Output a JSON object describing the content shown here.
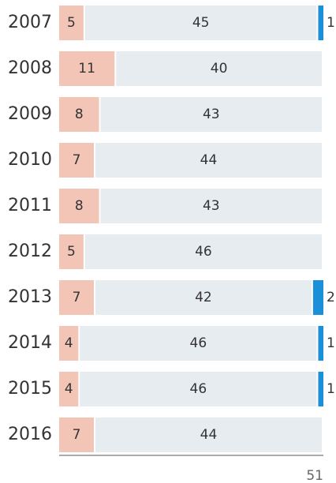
{
  "chart_data": {
    "type": "stacked-bar-horizontal",
    "categories": [
      "2007",
      "2008",
      "2009",
      "2010",
      "2011",
      "2012",
      "2013",
      "2014",
      "2015",
      "2016"
    ],
    "series": [
      {
        "color": "#f2c5b6",
        "values": [
          5,
          11,
          8,
          7,
          8,
          5,
          7,
          4,
          4,
          7
        ]
      },
      {
        "color": "#e7ecf1",
        "values": [
          45,
          40,
          43,
          44,
          43,
          46,
          42,
          46,
          46,
          44
        ]
      },
      {
        "color": "#1b8fd8",
        "values": [
          1,
          null,
          null,
          null,
          null,
          null,
          2,
          1,
          1,
          null
        ]
      }
    ],
    "xlim": [
      0,
      51
    ],
    "xticks": [
      51
    ]
  }
}
